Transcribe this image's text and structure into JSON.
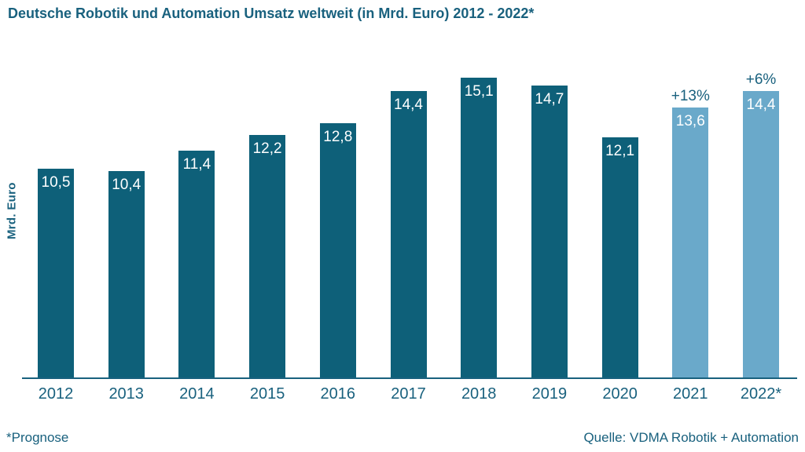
{
  "title": "Deutsche Robotik und Automation Umsatz weltweit (in Mrd. Euro) 2012 - 2022*",
  "footnote": "*Prognose",
  "source": "Quelle: VDMA Robotik + Automation",
  "colors": {
    "bar_dark": "#0e6079",
    "bar_light": "#6aa9ca",
    "text_teal": "#19617e",
    "value_label": "#ffffff",
    "axis_line": "#19617e"
  },
  "chart_data": {
    "type": "bar",
    "title": "Deutsche Robotik und Automation Umsatz weltweit (in Mrd. Euro) 2012 - 2022*",
    "xlabel": "",
    "ylabel": "Mrd. Euro",
    "categories": [
      "2012",
      "2013",
      "2014",
      "2015",
      "2016",
      "2017",
      "2018",
      "2019",
      "2020",
      "2021",
      "2022*"
    ],
    "values": [
      10.5,
      10.4,
      11.4,
      12.2,
      12.8,
      14.4,
      15.1,
      14.7,
      12.1,
      13.6,
      14.4
    ],
    "value_labels": [
      "10,5",
      "10,4",
      "11,4",
      "12,2",
      "12,8",
      "14,4",
      "15,1",
      "14,7",
      "12,1",
      "13,6",
      "14,4"
    ],
    "forecast_indices": [
      9,
      10
    ],
    "annotations": [
      {
        "index": 9,
        "label": "+13%"
      },
      {
        "index": 10,
        "label": "+6%"
      }
    ],
    "ylim": [
      0,
      16.7
    ],
    "grid": false,
    "legend": null
  }
}
